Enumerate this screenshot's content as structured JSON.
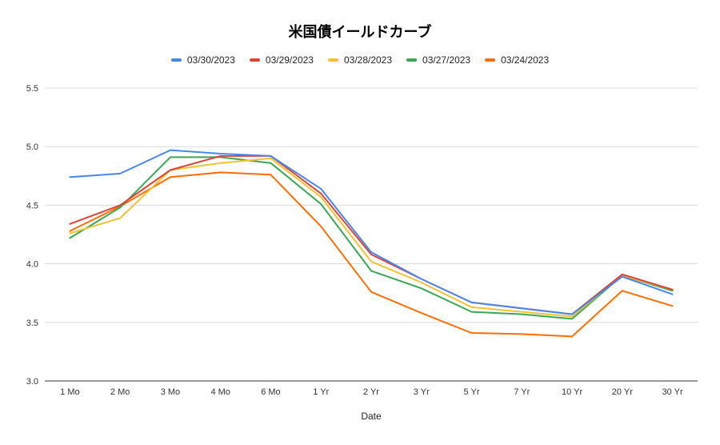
{
  "chart_data": {
    "type": "line",
    "title": "米国債イールドカーブ",
    "xlabel": "Date",
    "ylabel": "",
    "ylim": [
      3.0,
      5.5
    ],
    "yticks": [
      "3.0",
      "3.5",
      "4.0",
      "4.5",
      "5.0",
      "5.5"
    ],
    "grid": true,
    "legend_position": "top",
    "categories": [
      "1 Mo",
      "2 Mo",
      "3 Mo",
      "4 Mo",
      "6 Mo",
      "1 Yr",
      "2 Yr",
      "3 Yr",
      "5 Yr",
      "7 Yr",
      "10 Yr",
      "20 Yr",
      "30 Yr"
    ],
    "series": [
      {
        "name": "03/30/2023",
        "color": "#4a86e8",
        "values": [
          4.74,
          4.77,
          4.97,
          4.94,
          4.92,
          4.64,
          4.1,
          3.87,
          3.67,
          3.62,
          3.57,
          3.89,
          3.74
        ]
      },
      {
        "name": "03/29/2023",
        "color": "#db4437",
        "values": [
          4.34,
          4.5,
          4.8,
          4.92,
          4.92,
          4.6,
          4.08,
          3.87,
          3.67,
          3.62,
          3.57,
          3.91,
          3.78
        ]
      },
      {
        "name": "03/28/2023",
        "color": "#f1c232",
        "values": [
          4.26,
          4.39,
          4.8,
          4.86,
          4.9,
          4.57,
          4.02,
          3.84,
          3.63,
          3.59,
          3.55,
          3.9,
          3.78
        ]
      },
      {
        "name": "03/27/2023",
        "color": "#3aa757",
        "values": [
          4.22,
          4.48,
          4.91,
          4.91,
          4.86,
          4.51,
          3.94,
          3.79,
          3.59,
          3.57,
          3.53,
          3.9,
          3.77
        ]
      },
      {
        "name": "03/24/2023",
        "color": "#ff6d01",
        "values": [
          4.28,
          4.49,
          4.74,
          4.78,
          4.76,
          4.32,
          3.76,
          3.58,
          3.41,
          3.4,
          3.38,
          3.77,
          3.64
        ]
      }
    ]
  }
}
